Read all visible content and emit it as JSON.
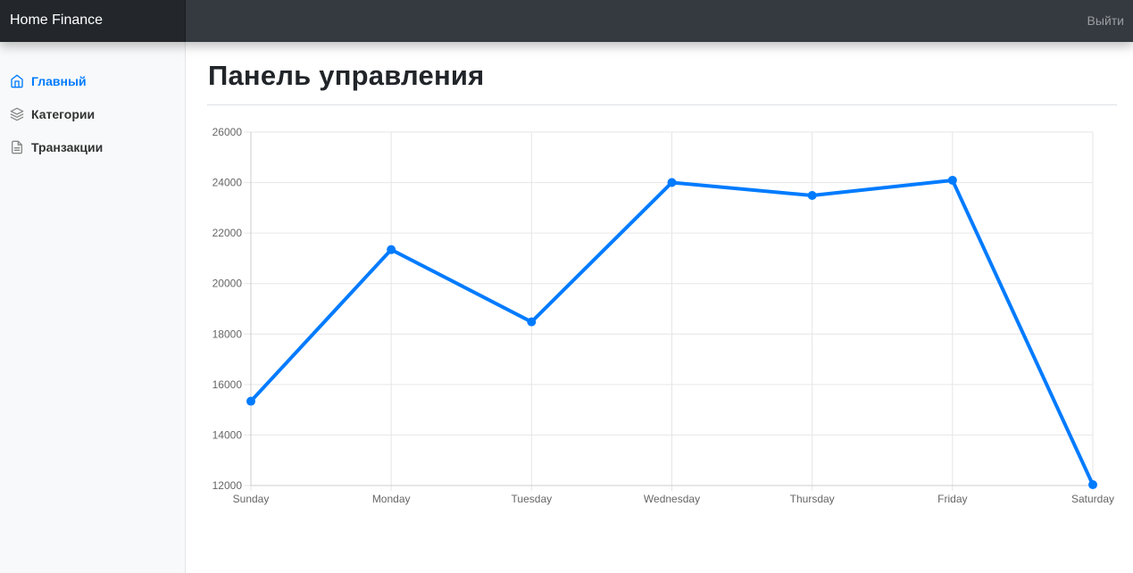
{
  "navbar": {
    "brand": "Home Finance",
    "signout_label": "Выйти"
  },
  "sidebar": {
    "items": [
      {
        "label": "Главный",
        "icon": "home-icon",
        "active": true
      },
      {
        "label": "Категории",
        "icon": "layers-icon",
        "active": false
      },
      {
        "label": "Транзакции",
        "icon": "file-text-icon",
        "active": false
      }
    ]
  },
  "main": {
    "title": "Панель управления"
  },
  "colors": {
    "accent": "#007bff",
    "navbar": "#343a40",
    "brand_bg": "#23272b",
    "sidebar_bg": "#f8f9fa"
  },
  "chart_data": {
    "type": "line",
    "categories": [
      "Sunday",
      "Monday",
      "Tuesday",
      "Wednesday",
      "Thursday",
      "Friday",
      "Saturday"
    ],
    "series": [
      {
        "values": [
          15339,
          21345,
          18483,
          24003,
          23489,
          24092,
          12034
        ]
      }
    ],
    "ylim": [
      12000,
      26000
    ],
    "yticks": [
      12000,
      14000,
      16000,
      18000,
      20000,
      22000,
      24000,
      26000
    ],
    "grid": true,
    "legend": "none",
    "line_color": "#007bff"
  }
}
